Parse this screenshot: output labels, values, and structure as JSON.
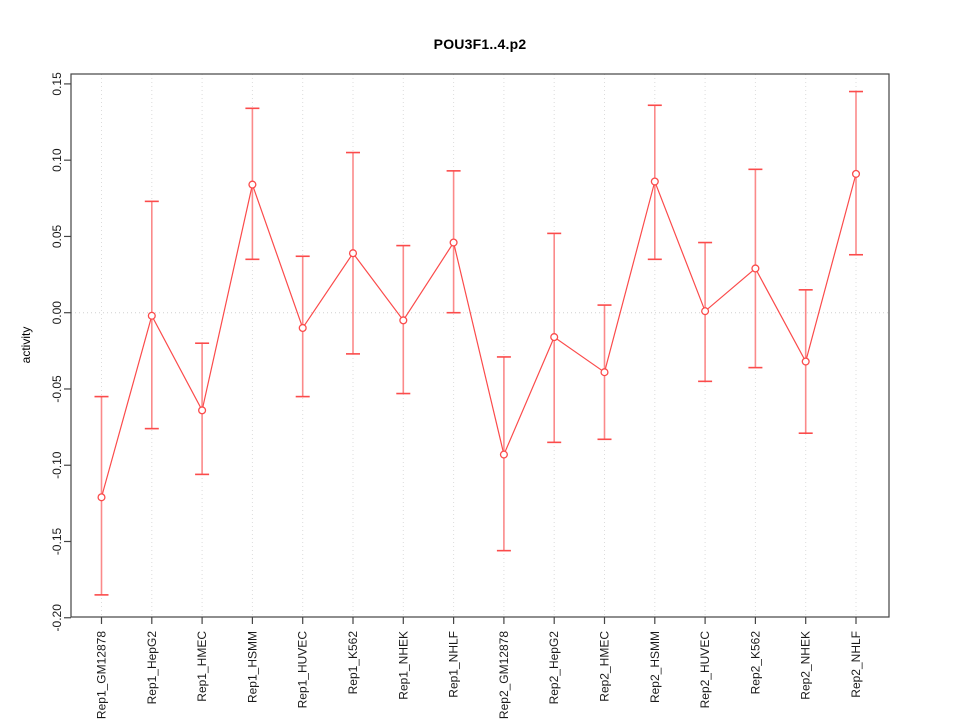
{
  "figure": {
    "background": "#ffffff"
  },
  "chart_data": {
    "type": "line",
    "title": "POU3F1..4.p2",
    "ylabel": "activity",
    "xlabel": "",
    "legend": "none",
    "grid": "dotted vertical gridline at every category; dotted horizontal line at y=0",
    "categories": [
      "Rep1_GM12878",
      "Rep1_HepG2",
      "Rep1_HMEC",
      "Rep1_HSMM",
      "Rep1_HUVEC",
      "Rep1_K562",
      "Rep1_NHEK",
      "Rep1_NHLF",
      "Rep2_GM12878",
      "Rep2_HepG2",
      "Rep2_HMEC",
      "Rep2_HSMM",
      "Rep2_HUVEC",
      "Rep2_K562",
      "Rep2_NHEK",
      "Rep2_NHLF"
    ],
    "series": [
      {
        "name": "activity",
        "marker": "open-circle",
        "values": [
          -0.121,
          -0.002,
          -0.064,
          0.084,
          -0.01,
          0.039,
          -0.005,
          0.046,
          -0.093,
          -0.016,
          -0.039,
          0.086,
          0.001,
          0.029,
          -0.032,
          0.091
        ],
        "upper": [
          -0.055,
          0.073,
          -0.02,
          0.134,
          0.037,
          0.105,
          0.044,
          0.093,
          -0.029,
          0.052,
          0.005,
          0.136,
          0.046,
          0.094,
          0.015,
          0.145
        ],
        "lower": [
          -0.185,
          -0.076,
          -0.106,
          0.035,
          -0.055,
          -0.027,
          -0.053,
          0.0,
          -0.156,
          -0.085,
          -0.083,
          0.035,
          -0.045,
          -0.036,
          -0.079,
          0.038
        ]
      }
    ],
    "yticks": [
      0.15,
      0.1,
      0.05,
      0.0,
      -0.05,
      -0.1,
      -0.15,
      -0.2
    ],
    "ylim": [
      -0.1995,
      0.1565
    ],
    "colors": {
      "series": "#FB4B4B",
      "error_bar_stem": "#FB8A8A",
      "grid": "#DCDCDC",
      "zero_line": "#D0D0D0",
      "box": "#444444",
      "text": "#1A1A1A"
    }
  }
}
